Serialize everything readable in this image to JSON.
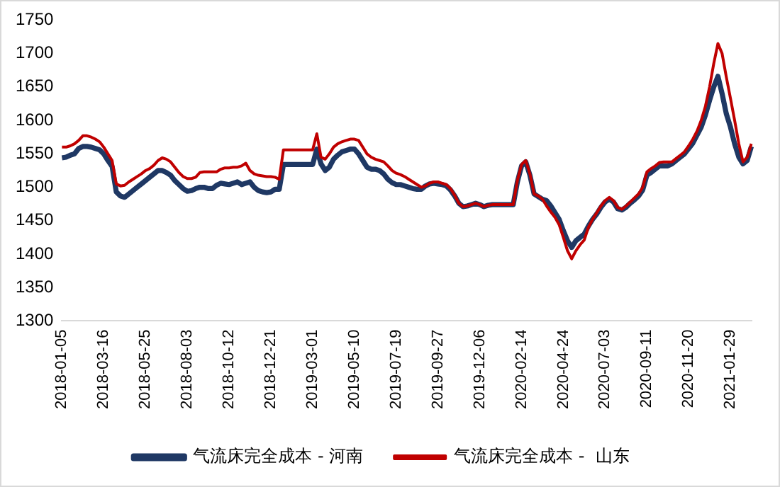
{
  "chart_data": {
    "type": "line",
    "categories": [
      "2018-01-05",
      null,
      null,
      null,
      null,
      null,
      null,
      null,
      null,
      null,
      "2018-03-16",
      null,
      null,
      null,
      null,
      null,
      null,
      null,
      null,
      null,
      "2018-05-25",
      null,
      null,
      null,
      null,
      null,
      null,
      null,
      null,
      null,
      "2018-08-03",
      null,
      null,
      null,
      null,
      null,
      null,
      null,
      null,
      null,
      "2018-10-12",
      null,
      null,
      null,
      null,
      null,
      null,
      null,
      null,
      null,
      "2018-12-21",
      null,
      null,
      null,
      null,
      null,
      null,
      null,
      null,
      null,
      "2019-03-01",
      null,
      null,
      null,
      null,
      null,
      null,
      null,
      null,
      null,
      "2019-05-10",
      null,
      null,
      null,
      null,
      null,
      null,
      null,
      null,
      null,
      "2019-07-19",
      null,
      null,
      null,
      null,
      null,
      null,
      null,
      null,
      null,
      "2019-09-27",
      null,
      null,
      null,
      null,
      null,
      null,
      null,
      null,
      null,
      "2019-12-06",
      null,
      null,
      null,
      null,
      null,
      null,
      null,
      null,
      null,
      "2020-02-14",
      null,
      null,
      null,
      null,
      null,
      null,
      null,
      null,
      null,
      "2020-04-24",
      null,
      null,
      null,
      null,
      null,
      null,
      null,
      null,
      null,
      "2020-07-03",
      null,
      null,
      null,
      null,
      null,
      null,
      null,
      null,
      null,
      "2020-09-11",
      null,
      null,
      null,
      null,
      null,
      null,
      null,
      null,
      null,
      "2020-11-20",
      null,
      null,
      null,
      null,
      null,
      null,
      null,
      null,
      null,
      "2021-01-29",
      null,
      null,
      null,
      null,
      null
    ],
    "series": [
      {
        "name": "气流床完全成本 - 河南",
        "color": "#1f3864",
        "values": [
          1544,
          1545,
          1548,
          1550,
          1558,
          1561,
          1561,
          1560,
          1558,
          1556,
          1550,
          1540,
          1531,
          1493,
          1487,
          1485,
          1490,
          1495,
          1500,
          1505,
          1510,
          1515,
          1520,
          1525,
          1525,
          1522,
          1518,
          1510,
          1504,
          1498,
          1494,
          1495,
          1498,
          1500,
          1500,
          1498,
          1498,
          1503,
          1506,
          1505,
          1504,
          1506,
          1508,
          1504,
          1506,
          1508,
          1500,
          1495,
          1493,
          1492,
          1493,
          1497,
          1497,
          1534,
          1534,
          1534,
          1534,
          1534,
          1534,
          1534,
          1534,
          1557,
          1535,
          1525,
          1530,
          1542,
          1548,
          1553,
          1555,
          1557,
          1557,
          1550,
          1540,
          1530,
          1527,
          1527,
          1525,
          1520,
          1512,
          1507,
          1504,
          1504,
          1502,
          1500,
          1498,
          1497,
          1497,
          1502,
          1505,
          1506,
          1505,
          1504,
          1502,
          1496,
          1487,
          1476,
          1471,
          1472,
          1474,
          1476,
          1474,
          1471,
          1473,
          1474,
          1474,
          1474,
          1474,
          1474,
          1474,
          1508,
          1532,
          1538,
          1518,
          1490,
          1486,
          1482,
          1480,
          1472,
          1462,
          1452,
          1435,
          1420,
          1410,
          1420,
          1425,
          1430,
          1442,
          1452,
          1460,
          1470,
          1478,
          1482,
          1478,
          1468,
          1466,
          1470,
          1476,
          1481,
          1487,
          1496,
          1518,
          1522,
          1527,
          1532,
          1532,
          1532,
          1535,
          1540,
          1545,
          1550,
          1558,
          1566,
          1578,
          1590,
          1608,
          1630,
          1650,
          1666,
          1640,
          1610,
          1590,
          1565,
          1545,
          1535,
          1540,
          1561
        ]
      },
      {
        "name": "气流床完全成本 -  山东",
        "color": "#c00000",
        "values": [
          1560,
          1560,
          1562,
          1565,
          1570,
          1577,
          1577,
          1575,
          1572,
          1568,
          1560,
          1550,
          1540,
          1505,
          1502,
          1503,
          1508,
          1512,
          1516,
          1520,
          1525,
          1528,
          1533,
          1540,
          1544,
          1542,
          1538,
          1530,
          1522,
          1516,
          1513,
          1513,
          1515,
          1522,
          1523,
          1523,
          1523,
          1523,
          1527,
          1529,
          1529,
          1530,
          1530,
          1532,
          1536,
          1525,
          1520,
          1518,
          1517,
          1516,
          1516,
          1515,
          1512,
          1556,
          1556,
          1556,
          1556,
          1556,
          1556,
          1556,
          1556,
          1580,
          1545,
          1542,
          1550,
          1560,
          1565,
          1568,
          1570,
          1572,
          1572,
          1570,
          1560,
          1550,
          1545,
          1542,
          1540,
          1538,
          1532,
          1525,
          1521,
          1519,
          1516,
          1512,
          1508,
          1504,
          1500,
          1502,
          1506,
          1508,
          1508,
          1506,
          1504,
          1498,
          1488,
          1476,
          1471,
          1472,
          1474,
          1476,
          1474,
          1471,
          1473,
          1474,
          1474,
          1474,
          1474,
          1474,
          1474,
          1510,
          1534,
          1540,
          1520,
          1490,
          1487,
          1482,
          1472,
          1463,
          1455,
          1444,
          1425,
          1405,
          1393,
          1405,
          1414,
          1421,
          1440,
          1452,
          1462,
          1472,
          1480,
          1485,
          1480,
          1470,
          1467,
          1472,
          1478,
          1484,
          1490,
          1500,
          1523,
          1528,
          1532,
          1537,
          1538,
          1538,
          1538,
          1543,
          1548,
          1553,
          1562,
          1572,
          1584,
          1600,
          1621,
          1650,
          1685,
          1715,
          1700,
          1665,
          1633,
          1600,
          1565,
          1538,
          1545,
          1565
        ]
      }
    ],
    "ylim": [
      1300,
      1750
    ],
    "yticks": [
      1300,
      1350,
      1400,
      1450,
      1500,
      1550,
      1600,
      1650,
      1700,
      1750
    ],
    "grid": false,
    "legend": "bottom",
    "marker": "none",
    "line_style": "solid"
  }
}
